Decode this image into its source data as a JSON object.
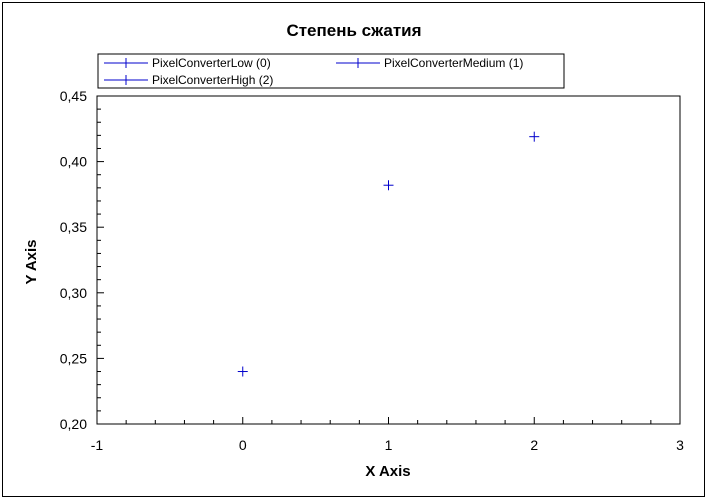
{
  "chart_data": {
    "type": "scatter",
    "title": "Степень сжатия",
    "xlabel": "X Axis",
    "ylabel": "Y Axis",
    "xlim": [
      -1,
      3
    ],
    "ylim": [
      0.2,
      0.45
    ],
    "x_ticks": [
      "-1",
      "0",
      "1",
      "2",
      "3"
    ],
    "y_ticks": [
      "0,20",
      "0,25",
      "0,30",
      "0,35",
      "0,40",
      "0,45"
    ],
    "grid": false,
    "legend_position": "top",
    "series": [
      {
        "name": "PixelConverterLow (0)",
        "x": [
          0
        ],
        "values": [
          0.24
        ],
        "color": "#0000cc",
        "marker": "plus"
      },
      {
        "name": "PixelConverterMedium (1)",
        "x": [
          1
        ],
        "values": [
          0.382
        ],
        "color": "#0000cc",
        "marker": "plus"
      },
      {
        "name": "PixelConverterHigh (2)",
        "x": [
          2
        ],
        "values": [
          0.419
        ],
        "color": "#0000cc",
        "marker": "plus"
      }
    ]
  }
}
